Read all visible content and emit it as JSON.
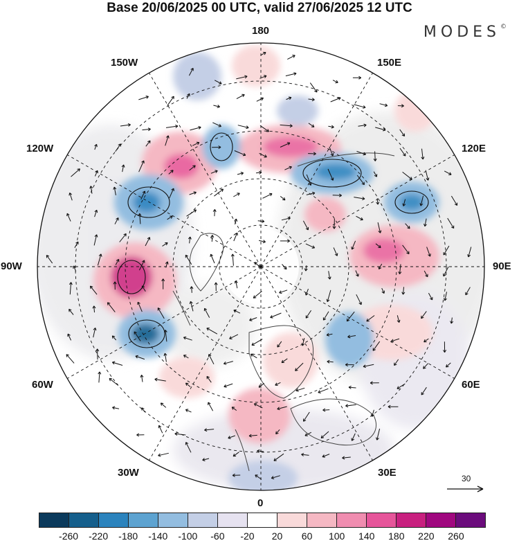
{
  "title": "Base 20/06/2025 00 UTC, valid 27/06/2025 12 UTC",
  "brand": "MODES",
  "brand_mark": "©",
  "longitude_labels": {
    "lon_180": "180",
    "lon_150e": "150E",
    "lon_120e": "120E",
    "lon_90e": "90E",
    "lon_60e": "60E",
    "lon_30e": "30E",
    "lon_0": "0",
    "lon_30w": "30W",
    "lon_60w": "60W",
    "lon_90w": "90W",
    "lon_120w": "120W",
    "lon_150w": "150W"
  },
  "reference_vector_label": "30",
  "colorbar": {
    "colors": [
      "#0b3a5c",
      "#155f8c",
      "#2b83bd",
      "#5da3d1",
      "#93bde0",
      "#c4cfe6",
      "#e6e2f0",
      "#ffffff",
      "#f9dada",
      "#f5b8c3",
      "#f08db0",
      "#e6559a",
      "#c8207f",
      "#a0087f",
      "#6b0c7c"
    ],
    "tick_labels": [
      "-260",
      "-220",
      "-180",
      "-140",
      "-100",
      "-60",
      "-20",
      "20",
      "60",
      "100",
      "140",
      "180",
      "220",
      "260"
    ]
  }
}
